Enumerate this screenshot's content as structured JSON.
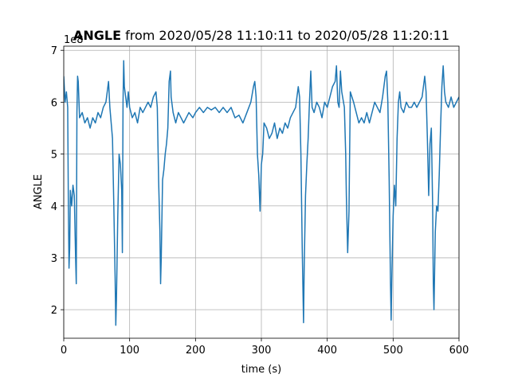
{
  "chart_data": {
    "type": "line",
    "title_bold": "ANGLE",
    "title": "from 2020/05/28 11:10:11 to 2020/05/28 11:20:11",
    "x_label": "time (s)",
    "y_label": "ANGLE",
    "y_offset_label": "1e8",
    "x": [
      0,
      2,
      4,
      6,
      7,
      8,
      9,
      10,
      12,
      14,
      16,
      18,
      19,
      20,
      21,
      22,
      24,
      28,
      32,
      36,
      40,
      44,
      48,
      52,
      56,
      60,
      64,
      68,
      70,
      72,
      74,
      76,
      78,
      79,
      80,
      82,
      84,
      86,
      88,
      89,
      90,
      91,
      92,
      94,
      96,
      98,
      100,
      104,
      108,
      112,
      116,
      120,
      124,
      128,
      132,
      136,
      140,
      142,
      144,
      146,
      147,
      148,
      150,
      152,
      154,
      156,
      158,
      160,
      162,
      163,
      166,
      170,
      174,
      178,
      182,
      186,
      190,
      196,
      200,
      206,
      212,
      218,
      224,
      230,
      236,
      242,
      248,
      254,
      260,
      266,
      272,
      278,
      284,
      288,
      290,
      292,
      294,
      296,
      298,
      300,
      302,
      304,
      308,
      312,
      316,
      320,
      324,
      328,
      332,
      336,
      340,
      344,
      348,
      352,
      356,
      358,
      360,
      362,
      364,
      365,
      367,
      369,
      371,
      373,
      375,
      377,
      380,
      384,
      388,
      392,
      396,
      400,
      404,
      408,
      412,
      414,
      416,
      418,
      420,
      422,
      426,
      428,
      429,
      431,
      433,
      435,
      440,
      444,
      448,
      452,
      456,
      460,
      464,
      468,
      472,
      476,
      480,
      484,
      488,
      490,
      492,
      494,
      496,
      497,
      498,
      500,
      502,
      504,
      506,
      508,
      510,
      512,
      516,
      520,
      524,
      528,
      532,
      536,
      540,
      544,
      548,
      550,
      552,
      554,
      556,
      558,
      560,
      561,
      562,
      564,
      566,
      568,
      570,
      572,
      574,
      576,
      578,
      580,
      584,
      588,
      592,
      596,
      600
    ],
    "series": [
      {
        "name": "ANGLE",
        "color": "#1f77b4",
        "values": [
          6.5,
          6.0,
          6.2,
          5.9,
          4.0,
          2.8,
          3.2,
          4.3,
          4.0,
          4.4,
          4.2,
          3.0,
          2.5,
          5.8,
          6.5,
          6.4,
          5.7,
          5.8,
          5.6,
          5.7,
          5.5,
          5.7,
          5.6,
          5.8,
          5.7,
          5.9,
          6.0,
          6.4,
          5.9,
          5.6,
          5.3,
          4.0,
          2.6,
          1.7,
          2.2,
          3.8,
          5.0,
          4.8,
          4.3,
          3.1,
          6.0,
          6.8,
          6.3,
          6.1,
          5.9,
          6.2,
          5.9,
          5.7,
          5.8,
          5.6,
          5.9,
          5.8,
          5.9,
          6.0,
          5.9,
          6.1,
          6.2,
          5.9,
          4.5,
          3.5,
          2.5,
          3.0,
          4.5,
          4.7,
          5.0,
          5.2,
          5.5,
          6.4,
          6.6,
          6.1,
          5.8,
          5.6,
          5.8,
          5.7,
          5.6,
          5.7,
          5.8,
          5.7,
          5.8,
          5.9,
          5.8,
          5.9,
          5.85,
          5.9,
          5.8,
          5.9,
          5.8,
          5.9,
          5.7,
          5.75,
          5.6,
          5.8,
          6.0,
          6.3,
          6.4,
          6.1,
          5.0,
          4.6,
          3.9,
          4.8,
          5.0,
          5.6,
          5.5,
          5.3,
          5.4,
          5.6,
          5.3,
          5.5,
          5.4,
          5.6,
          5.5,
          5.7,
          5.8,
          5.9,
          6.3,
          6.1,
          5.0,
          3.2,
          1.75,
          2.8,
          4.2,
          4.8,
          5.3,
          6.0,
          6.6,
          5.9,
          5.8,
          6.0,
          5.9,
          5.7,
          6.0,
          5.9,
          6.1,
          6.3,
          6.4,
          6.7,
          6.0,
          5.9,
          6.6,
          6.2,
          5.9,
          5.0,
          4.2,
          3.1,
          3.9,
          6.2,
          6.0,
          5.8,
          5.6,
          5.7,
          5.6,
          5.8,
          5.6,
          5.8,
          6.0,
          5.9,
          5.8,
          6.1,
          6.5,
          6.6,
          6.0,
          4.5,
          2.5,
          1.8,
          2.6,
          3.8,
          4.4,
          4.0,
          5.3,
          6.0,
          6.2,
          5.9,
          5.8,
          6.0,
          5.9,
          5.9,
          6.0,
          5.9,
          6.0,
          6.1,
          6.5,
          6.2,
          5.3,
          4.2,
          5.2,
          5.5,
          4.0,
          2.5,
          2.0,
          3.5,
          4.0,
          3.9,
          4.6,
          5.5,
          6.3,
          6.7,
          6.2,
          6.0,
          5.9,
          6.1,
          5.9,
          6.0,
          6.1
        ]
      }
    ],
    "xlim": [
      0,
      600
    ],
    "xticks": [
      0,
      100,
      200,
      300,
      400,
      500,
      600
    ],
    "ylim": [
      1.45,
      7.08
    ],
    "yticks": [
      2,
      3,
      4,
      5,
      6,
      7
    ],
    "grid": true
  }
}
